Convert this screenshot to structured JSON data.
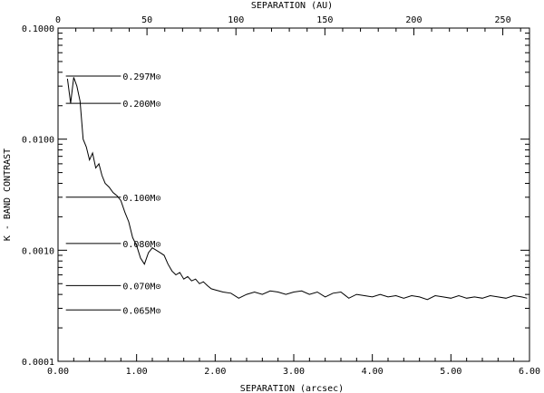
{
  "chart_data": {
    "type": "line",
    "title": "",
    "xlabel": "SEPARATION (arcsec)",
    "ylabel": "K - BAND CONTRAST",
    "x2label": "SEPARATION (AU)",
    "xlim": [
      0,
      6
    ],
    "ylim": [
      0.0001,
      0.1
    ],
    "x2lim": [
      0,
      265
    ],
    "yscale": "log",
    "x_ticks": [
      0.0,
      1.0,
      2.0,
      3.0,
      4.0,
      5.0,
      6.0
    ],
    "x_tick_labels": [
      "0.00",
      "1.00",
      "2.00",
      "3.00",
      "4.00",
      "5.00",
      "6.00"
    ],
    "x2_ticks": [
      0,
      50,
      100,
      150,
      200,
      250
    ],
    "x2_tick_labels": [
      "0",
      "50",
      "100",
      "150",
      "200",
      "250"
    ],
    "y_ticks": [
      0.0001,
      0.001,
      0.01,
      0.1
    ],
    "y_tick_labels": [
      "0.0001",
      "0.0010",
      "0.0100",
      "0.1000"
    ],
    "series": [
      {
        "color": "#000000",
        "x": [
          0.12,
          0.16,
          0.2,
          0.24,
          0.28,
          0.32,
          0.36,
          0.4,
          0.44,
          0.48,
          0.52,
          0.56,
          0.6,
          0.65,
          0.7,
          0.75,
          0.8,
          0.85,
          0.9,
          0.95,
          1.0,
          1.05,
          1.1,
          1.15,
          1.2,
          1.25,
          1.3,
          1.35,
          1.4,
          1.45,
          1.5,
          1.55,
          1.6,
          1.65,
          1.7,
          1.75,
          1.8,
          1.85,
          1.9,
          1.95,
          2.0,
          2.1,
          2.2,
          2.3,
          2.4,
          2.5,
          2.6,
          2.7,
          2.8,
          2.9,
          3.0,
          3.1,
          3.2,
          3.3,
          3.4,
          3.5,
          3.6,
          3.7,
          3.8,
          3.9,
          4.0,
          4.1,
          4.2,
          4.3,
          4.4,
          4.5,
          4.6,
          4.7,
          4.8,
          4.9,
          5.0,
          5.1,
          5.2,
          5.3,
          5.4,
          5.5,
          5.6,
          5.7,
          5.8,
          5.9,
          5.97
        ],
        "y": [
          0.035,
          0.021,
          0.036,
          0.03,
          0.022,
          0.01,
          0.0085,
          0.0065,
          0.0075,
          0.0055,
          0.006,
          0.0047,
          0.004,
          0.0037,
          0.0033,
          0.0031,
          0.0028,
          0.0022,
          0.0018,
          0.0013,
          0.0011,
          0.00085,
          0.00075,
          0.00095,
          0.00105,
          0.001,
          0.00095,
          0.0009,
          0.00075,
          0.00065,
          0.0006,
          0.00063,
          0.00055,
          0.00058,
          0.00053,
          0.00055,
          0.0005,
          0.00052,
          0.00048,
          0.00045,
          0.00044,
          0.00042,
          0.00041,
          0.00037,
          0.0004,
          0.00042,
          0.0004,
          0.00043,
          0.00042,
          0.0004,
          0.00042,
          0.00043,
          0.0004,
          0.00042,
          0.00038,
          0.00041,
          0.00042,
          0.00037,
          0.0004,
          0.00039,
          0.00038,
          0.0004,
          0.00038,
          0.00039,
          0.00037,
          0.00039,
          0.00038,
          0.00036,
          0.00039,
          0.00038,
          0.00037,
          0.00039,
          0.00037,
          0.00038,
          0.00037,
          0.00039,
          0.00038,
          0.00037,
          0.00039,
          0.00038,
          0.00037
        ]
      }
    ],
    "mass_lines": [
      {
        "y": 0.037,
        "label": "0.297M⊙",
        "x_end": 0.8
      },
      {
        "y": 0.021,
        "label": "0.200M⊙",
        "x_end": 0.8
      },
      {
        "y": 0.003,
        "label": "0.100M⊙",
        "x_end": 0.8
      },
      {
        "y": 0.00115,
        "label": "0.080M⊙",
        "x_end": 0.8
      },
      {
        "y": 0.00048,
        "label": "0.070M⊙",
        "x_end": 0.8
      },
      {
        "y": 0.00029,
        "label": "0.065M⊙",
        "x_end": 0.8
      }
    ],
    "grid": false,
    "legend": "none"
  }
}
